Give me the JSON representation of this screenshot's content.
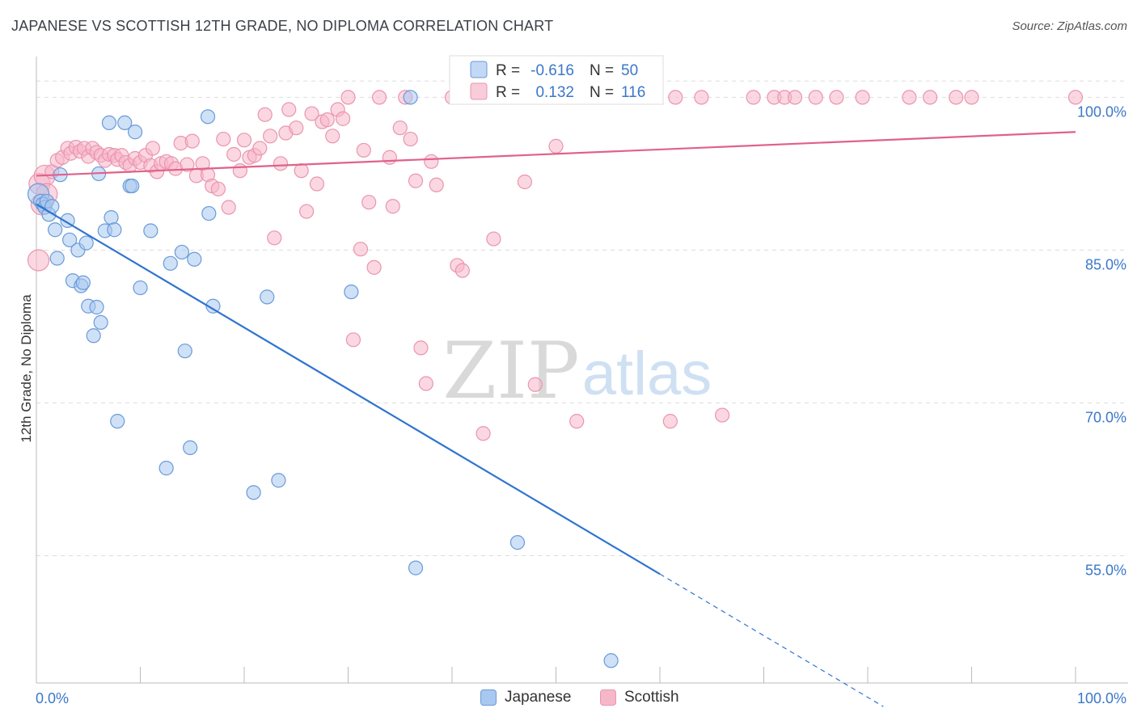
{
  "title": "JAPANESE VS SCOTTISH 12TH GRADE, NO DIPLOMA CORRELATION CHART",
  "source": "Source: ZipAtlas.com",
  "watermark": {
    "zip": "ZIP",
    "atlas": "atlas"
  },
  "colors": {
    "japanese_fill": "#a8c8f0",
    "japanese_stroke": "#6a9ad8",
    "japanese_line": "#2f74d0",
    "scottish_fill": "#f7b7ca",
    "scottish_stroke": "#e995b0",
    "scottish_line": "#e0618b",
    "tick_text": "#3a78c9",
    "grid": "#dddddd"
  },
  "legend_top": {
    "rows": [
      {
        "series": "Japanese",
        "r_label": "R =",
        "r_value": "-0.616",
        "n_label": "N =",
        "n_value": "50"
      },
      {
        "series": "Scottish",
        "r_label": "R =",
        "r_value": "0.132",
        "n_label": "N =",
        "n_value": "116"
      }
    ]
  },
  "chart_data": {
    "type": "scatter",
    "title": "JAPANESE VS SCOTTISH 12TH GRADE, NO DIPLOMA CORRELATION CHART",
    "xlabel": "",
    "ylabel": "12th Grade, No Diploma",
    "xlim": [
      0,
      100
    ],
    "ylim": [
      42.5,
      104
    ],
    "x_tick_labels": [
      {
        "value": 0,
        "label": "0.0%"
      },
      {
        "value": 100,
        "label": "100.0%"
      }
    ],
    "y_ticks": [
      {
        "value": 55,
        "label": "55.0%"
      },
      {
        "value": 70,
        "label": "70.0%"
      },
      {
        "value": 85,
        "label": "85.0%"
      },
      {
        "value": 100,
        "label": "100.0%"
      }
    ],
    "grid": true,
    "series": [
      {
        "name": "Japanese",
        "r": -0.616,
        "n": 50,
        "trend": {
          "x0": 0,
          "y0": 89.5,
          "x1": 60,
          "y1": 53.2,
          "dashed_to_x": 81.5
        },
        "points": [
          [
            0.2,
            90.5
          ],
          [
            0.4,
            89.8
          ],
          [
            0.6,
            89.5
          ],
          [
            0.8,
            89.2
          ],
          [
            1.0,
            89.8
          ],
          [
            1.2,
            88.5
          ],
          [
            1.5,
            89.3
          ],
          [
            1.8,
            87.0
          ],
          [
            2.0,
            84.2
          ],
          [
            2.3,
            92.4
          ],
          [
            3.0,
            87.9
          ],
          [
            3.2,
            86.0
          ],
          [
            3.5,
            82.0
          ],
          [
            4.0,
            85.0
          ],
          [
            4.3,
            81.5
          ],
          [
            4.5,
            81.8
          ],
          [
            4.8,
            85.7
          ],
          [
            5.0,
            79.5
          ],
          [
            5.5,
            76.6
          ],
          [
            5.8,
            79.4
          ],
          [
            6.0,
            92.5
          ],
          [
            6.2,
            77.9
          ],
          [
            6.6,
            86.9
          ],
          [
            7.0,
            97.5
          ],
          [
            7.2,
            88.2
          ],
          [
            7.5,
            87.0
          ],
          [
            7.8,
            68.2
          ],
          [
            8.5,
            97.5
          ],
          [
            9.0,
            91.3
          ],
          [
            9.2,
            91.3
          ],
          [
            9.5,
            96.6
          ],
          [
            10.0,
            81.3
          ],
          [
            11.0,
            86.9
          ],
          [
            12.5,
            63.6
          ],
          [
            12.9,
            83.7
          ],
          [
            14.0,
            84.8
          ],
          [
            14.3,
            75.1
          ],
          [
            14.8,
            65.6
          ],
          [
            15.2,
            84.1
          ],
          [
            16.5,
            98.1
          ],
          [
            16.6,
            88.6
          ],
          [
            17.0,
            79.5
          ],
          [
            20.9,
            61.2
          ],
          [
            22.2,
            80.4
          ],
          [
            23.3,
            62.4
          ],
          [
            30.3,
            80.9
          ],
          [
            36.0,
            100.0
          ],
          [
            36.5,
            53.8
          ],
          [
            46.3,
            56.3
          ],
          [
            55.3,
            44.7
          ]
        ]
      },
      {
        "name": "Scottish",
        "r": 0.132,
        "n": 116,
        "trend": {
          "x0": 0,
          "y0": 92.3,
          "x1": 100,
          "y1": 96.6
        },
        "points": [
          [
            0.2,
            84.0
          ],
          [
            0.3,
            91.5
          ],
          [
            0.5,
            89.5
          ],
          [
            0.8,
            92.3
          ],
          [
            1.0,
            90.5
          ],
          [
            1.5,
            92.7
          ],
          [
            2.0,
            93.8
          ],
          [
            2.5,
            94.1
          ],
          [
            3.0,
            95.0
          ],
          [
            3.3,
            94.5
          ],
          [
            3.8,
            95.1
          ],
          [
            4.2,
            94.7
          ],
          [
            4.6,
            95.0
          ],
          [
            5.0,
            94.2
          ],
          [
            5.4,
            95.0
          ],
          [
            5.8,
            94.6
          ],
          [
            6.2,
            94.3
          ],
          [
            6.6,
            93.8
          ],
          [
            7.0,
            94.4
          ],
          [
            7.5,
            94.3
          ],
          [
            7.8,
            93.9
          ],
          [
            8.2,
            94.3
          ],
          [
            8.6,
            93.6
          ],
          [
            9.0,
            93.3
          ],
          [
            9.5,
            94.0
          ],
          [
            10.0,
            93.6
          ],
          [
            10.5,
            94.3
          ],
          [
            11.0,
            93.3
          ],
          [
            11.2,
            95.0
          ],
          [
            11.6,
            92.7
          ],
          [
            12.0,
            93.5
          ],
          [
            12.5,
            93.7
          ],
          [
            13.0,
            93.5
          ],
          [
            13.4,
            93.0
          ],
          [
            13.9,
            95.5
          ],
          [
            14.5,
            93.4
          ],
          [
            15.0,
            95.7
          ],
          [
            15.4,
            92.3
          ],
          [
            16.0,
            93.5
          ],
          [
            16.5,
            92.4
          ],
          [
            16.9,
            91.3
          ],
          [
            17.5,
            91.0
          ],
          [
            18.0,
            95.9
          ],
          [
            18.5,
            89.2
          ],
          [
            19.0,
            94.4
          ],
          [
            19.6,
            92.8
          ],
          [
            20.0,
            95.8
          ],
          [
            20.5,
            94.1
          ],
          [
            21.0,
            94.3
          ],
          [
            21.5,
            95.0
          ],
          [
            22.0,
            98.3
          ],
          [
            22.5,
            96.2
          ],
          [
            22.9,
            86.2
          ],
          [
            23.5,
            93.5
          ],
          [
            24.0,
            96.5
          ],
          [
            24.3,
            98.8
          ],
          [
            25.0,
            97.0
          ],
          [
            25.5,
            92.8
          ],
          [
            26.0,
            88.8
          ],
          [
            26.5,
            98.4
          ],
          [
            27.0,
            91.5
          ],
          [
            27.5,
            97.6
          ],
          [
            28.0,
            97.8
          ],
          [
            28.5,
            96.2
          ],
          [
            29.0,
            98.8
          ],
          [
            29.5,
            97.9
          ],
          [
            30.0,
            100.0
          ],
          [
            30.5,
            76.2
          ],
          [
            31.2,
            85.1
          ],
          [
            31.5,
            94.8
          ],
          [
            32.0,
            89.7
          ],
          [
            32.5,
            83.3
          ],
          [
            33.0,
            100.0
          ],
          [
            34.0,
            94.1
          ],
          [
            34.3,
            89.3
          ],
          [
            35.0,
            97.0
          ],
          [
            35.5,
            100.0
          ],
          [
            36.0,
            95.9
          ],
          [
            36.5,
            91.8
          ],
          [
            37.0,
            75.4
          ],
          [
            37.5,
            71.9
          ],
          [
            38.0,
            93.7
          ],
          [
            38.5,
            91.4
          ],
          [
            40.0,
            100.0
          ],
          [
            40.5,
            83.5
          ],
          [
            41.0,
            83.0
          ],
          [
            42.0,
            100.0
          ],
          [
            43.0,
            67.0
          ],
          [
            44.0,
            86.1
          ],
          [
            46.0,
            100.0
          ],
          [
            47.0,
            91.7
          ],
          [
            48.0,
            71.8
          ],
          [
            50.0,
            95.2
          ],
          [
            52.0,
            68.2
          ],
          [
            53.0,
            100.0
          ],
          [
            55.0,
            100.0
          ],
          [
            57.0,
            100.0
          ],
          [
            58.0,
            100.0
          ],
          [
            59.5,
            100.0
          ],
          [
            61.0,
            68.2
          ],
          [
            61.5,
            100.0
          ],
          [
            64.0,
            100.0
          ],
          [
            66.0,
            68.8
          ],
          [
            69.0,
            100.0
          ],
          [
            71.0,
            100.0
          ],
          [
            72.0,
            100.0
          ],
          [
            73.0,
            100.0
          ],
          [
            75.0,
            100.0
          ],
          [
            77.0,
            100.0
          ],
          [
            79.5,
            100.0
          ],
          [
            84.0,
            100.0
          ],
          [
            86.0,
            100.0
          ],
          [
            88.5,
            100.0
          ],
          [
            90.0,
            100.0
          ],
          [
            100.0,
            100.0
          ],
          [
            55.2,
            100.0
          ]
        ]
      }
    ]
  }
}
